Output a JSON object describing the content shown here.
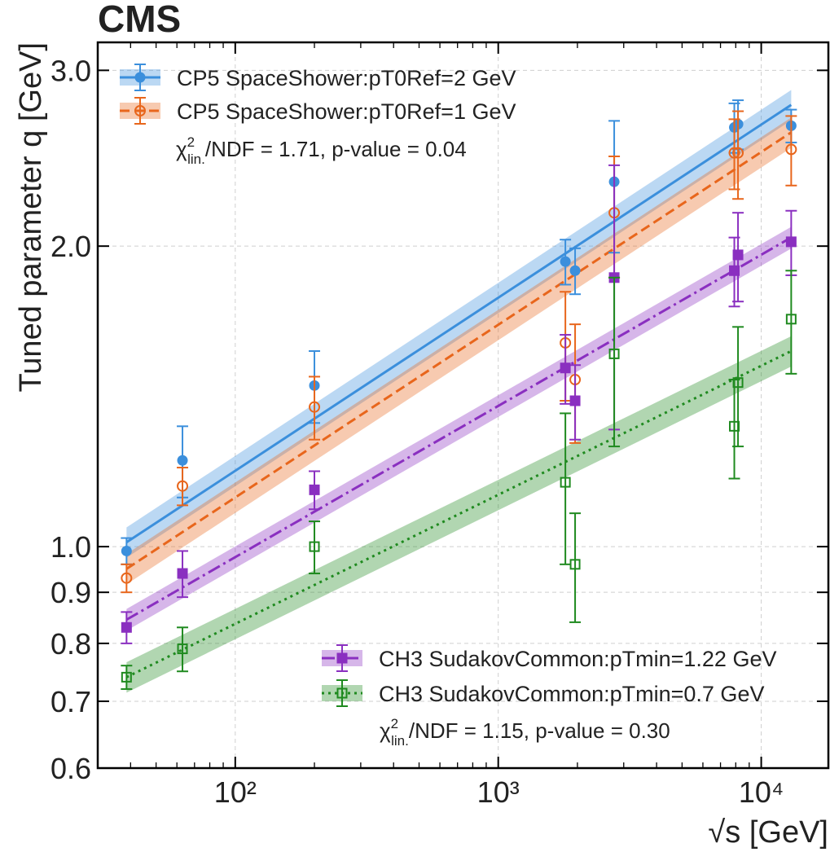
{
  "experiment_label": "CMS",
  "chart_data": {
    "type": "scatter",
    "xlabel": "√s [GeV]",
    "ylabel": "Tuned parameter q [GeV]",
    "xscale": "log",
    "yscale": "log",
    "xlim": [
      30,
      18000
    ],
    "ylim": [
      0.6,
      3.2
    ],
    "x_ticks": [
      {
        "value": 100,
        "label": "10²"
      },
      {
        "value": 1000,
        "label": "10³"
      },
      {
        "value": 10000,
        "label": "10⁴"
      }
    ],
    "y_ticks": [
      0.6,
      0.7,
      0.8,
      0.9,
      1.0,
      2.0,
      3.0
    ],
    "y_tick_labels": [
      "0.6",
      "0.7",
      "0.8",
      "0.9",
      "1.0",
      "2.0",
      "3.0"
    ],
    "grid": true,
    "colors": {
      "blue": "#3b8fdc",
      "orange": "#e8661c",
      "purple": "#8a2fc0",
      "green": "#1f8a1f"
    },
    "series": [
      {
        "name": "CP5 SpaceShower:pT0Ref=2 GeV",
        "color": "#3b8fdc",
        "marker": "filled-circle",
        "line": "solid",
        "points": [
          {
            "x": 38.6,
            "y": 0.99,
            "err": 0.03
          },
          {
            "x": 63,
            "y": 1.22,
            "err": 0.1
          },
          {
            "x": 200,
            "y": 1.45,
            "err": 0.12
          },
          {
            "x": 1800,
            "y": 1.93,
            "err": 0.1
          },
          {
            "x": 1960,
            "y": 1.89,
            "err": 0.1
          },
          {
            "x": 2760,
            "y": 2.32,
            "err": 0.35
          },
          {
            "x": 7900,
            "y": 2.63,
            "err": 0.15
          },
          {
            "x": 8160,
            "y": 2.65,
            "err": 0.15
          },
          {
            "x": 13000,
            "y": 2.64,
            "err": 0.1
          }
        ],
        "fit": {
          "x": [
            38.6,
            13000
          ],
          "y": [
            1.01,
            2.77
          ],
          "band": 0.035
        }
      },
      {
        "name": "CP5 SpaceShower:pT0Ref=1 GeV",
        "color": "#e8661c",
        "marker": "open-circle",
        "line": "dashed",
        "points": [
          {
            "x": 38.6,
            "y": 0.93,
            "err": 0.03
          },
          {
            "x": 63,
            "y": 1.15,
            "err": 0.05
          },
          {
            "x": 200,
            "y": 1.38,
            "err": 0.1
          },
          {
            "x": 1800,
            "y": 1.6,
            "err": 0.2
          },
          {
            "x": 1960,
            "y": 1.47,
            "err": 0.2
          },
          {
            "x": 2760,
            "y": 2.16,
            "err": 0.3
          },
          {
            "x": 7900,
            "y": 2.48,
            "err": 0.2
          },
          {
            "x": 8160,
            "y": 2.48,
            "err": 0.25
          },
          {
            "x": 13000,
            "y": 2.5,
            "err": 0.2
          }
        ],
        "fit": {
          "x": [
            38.6,
            13000
          ],
          "y": [
            0.95,
            2.6
          ],
          "band": 0.035
        }
      },
      {
        "name": "CH3 SudakovCommon:pTmin=1.22 GeV",
        "color": "#8a2fc0",
        "marker": "filled-square",
        "line": "dashdot",
        "points": [
          {
            "x": 38.6,
            "y": 0.83,
            "err": 0.03
          },
          {
            "x": 63,
            "y": 0.94,
            "err": 0.05
          },
          {
            "x": 200,
            "y": 1.14,
            "err": 0.05
          },
          {
            "x": 1800,
            "y": 1.51,
            "err": 0.12
          },
          {
            "x": 1960,
            "y": 1.4,
            "err": 0.12
          },
          {
            "x": 2760,
            "y": 1.86,
            "err": 0.55
          },
          {
            "x": 7900,
            "y": 1.89,
            "err": 0.15
          },
          {
            "x": 8160,
            "y": 1.96,
            "err": 0.2
          },
          {
            "x": 13000,
            "y": 2.02,
            "err": 0.15
          }
        ],
        "fit": {
          "x": [
            38.6,
            13000
          ],
          "y": [
            0.845,
            2.04
          ],
          "band": 0.025
        }
      },
      {
        "name": "CH3 SudakovCommon:pTmin=0.7 GeV",
        "color": "#1f8a1f",
        "marker": "open-square",
        "line": "dotted",
        "points": [
          {
            "x": 38.6,
            "y": 0.74,
            "err": 0.02
          },
          {
            "x": 63,
            "y": 0.79,
            "err": 0.04
          },
          {
            "x": 200,
            "y": 1.0,
            "err": 0.06
          },
          {
            "x": 1800,
            "y": 1.16,
            "err": 0.2
          },
          {
            "x": 1960,
            "y": 0.96,
            "err": 0.12
          },
          {
            "x": 2760,
            "y": 1.56,
            "err": 0.3
          },
          {
            "x": 7900,
            "y": 1.32,
            "err": 0.15
          },
          {
            "x": 8160,
            "y": 1.46,
            "err": 0.2
          },
          {
            "x": 13000,
            "y": 1.69,
            "err": 0.2
          }
        ],
        "fit": {
          "x": [
            38.6,
            13000
          ],
          "y": [
            0.74,
            1.57
          ],
          "band": 0.035
        }
      }
    ],
    "annotations": [
      {
        "id": "upper",
        "text_main": "χ",
        "sup": "2",
        "sub": "lin.",
        "text_rest": "/NDF = 1.71, p-value = 0.04"
      },
      {
        "id": "lower",
        "text_main": "χ",
        "sup": "2",
        "sub": "lin.",
        "text_rest": "/NDF = 1.15, p-value = 0.30"
      }
    ]
  }
}
